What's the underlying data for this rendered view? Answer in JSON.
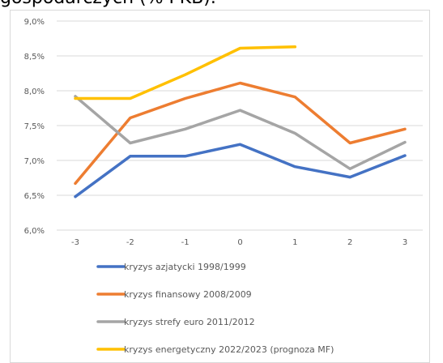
{
  "heading": {
    "text": "gospodarczych (% PKB)."
  },
  "chart_data": {
    "type": "line",
    "title": "",
    "xlabel": "",
    "ylabel": "",
    "x": [
      -3,
      -2,
      -1,
      0,
      1,
      2,
      3
    ],
    "x_tick_labels": [
      "-3",
      "-2",
      "-1",
      "0",
      "1",
      "2",
      "3"
    ],
    "y_tick_labels": [
      "9,0%",
      "8,5%",
      "8,0%",
      "7,5%",
      "7,0%",
      "6,5%",
      "6,0%"
    ],
    "y_ticks": [
      9.0,
      8.5,
      8.0,
      7.5,
      7.0,
      6.5,
      6.0
    ],
    "ylim": [
      6.0,
      9.0
    ],
    "grid": true,
    "legend_position": "bottom",
    "series": [
      {
        "name": "kryzys azjatycki 1998/1999",
        "color": "#4472c4",
        "values": [
          6.48,
          7.06,
          7.06,
          7.23,
          6.91,
          6.76,
          7.07
        ]
      },
      {
        "name": "kryzys finansowy 2008/2009",
        "color": "#ed7d31",
        "values": [
          6.67,
          7.61,
          7.89,
          8.11,
          7.91,
          7.25,
          7.45
        ]
      },
      {
        "name": "kryzys strefy euro 2011/2012",
        "color": "#a5a5a5",
        "values": [
          7.92,
          7.25,
          7.45,
          7.72,
          7.39,
          6.88,
          7.26
        ]
      },
      {
        "name": "kryzys energetyczny 2022/2023 (prognoza MF)",
        "color": "#ffc000",
        "values": [
          7.89,
          7.89,
          8.23,
          8.61,
          8.63,
          null,
          null
        ]
      }
    ]
  }
}
